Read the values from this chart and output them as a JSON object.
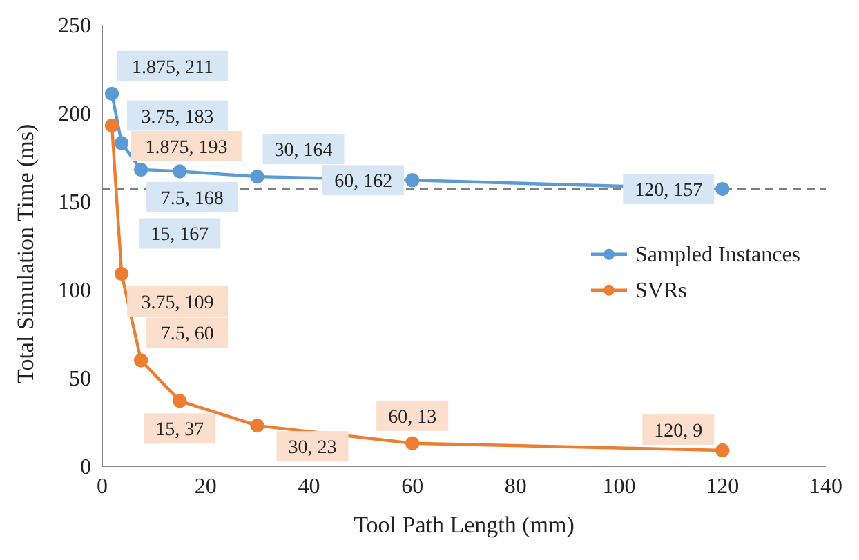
{
  "chart_data": {
    "type": "line",
    "xlabel": "Tool Path Length (mm)",
    "ylabel": "Total Simulation Time (ms)",
    "x": [
      1.875,
      3.75,
      7.5,
      15,
      30,
      60,
      120
    ],
    "series": [
      {
        "name": "Sampled Instances",
        "color": "#5b9bd5",
        "values": [
          211,
          183,
          168,
          167,
          164,
          162,
          157
        ],
        "value_labels": [
          "1.875, 211",
          "3.75, 183",
          "7.5, 168",
          "15, 167",
          "30, 164",
          "60, 162",
          "120, 157"
        ]
      },
      {
        "name": "SVRs",
        "color": "#ed7d31",
        "values": [
          193,
          109,
          60,
          37,
          23,
          13,
          9
        ],
        "value_labels": [
          "1.875, 193",
          "3.75, 109",
          "7.5, 60",
          "15, 37",
          "30, 23",
          "60, 13",
          "120, 9"
        ]
      }
    ],
    "xlim": [
      0,
      140
    ],
    "xticks": [
      0,
      20,
      40,
      60,
      80,
      100,
      120,
      140
    ],
    "ylim": [
      0,
      250
    ],
    "yticks": [
      0,
      50,
      100,
      150,
      200,
      250
    ],
    "ref_lines": [
      {
        "axis": "y",
        "value": 157,
        "color": "#7f7f7f",
        "line_style": "dashed"
      }
    ],
    "legend": "right",
    "marker": "circle"
  }
}
